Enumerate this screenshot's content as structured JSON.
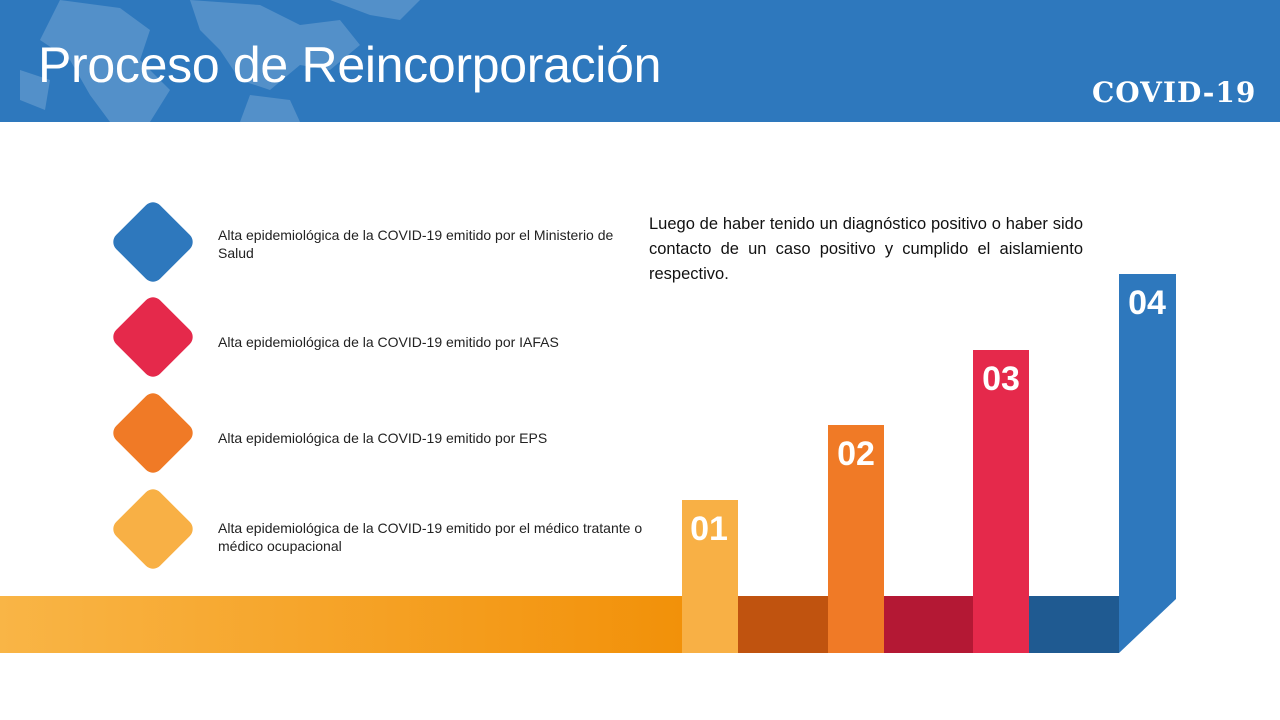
{
  "header": {
    "title": "Proceso de Reincorporación",
    "tag": "COVID-19",
    "background": "#2e78bd"
  },
  "steps": [
    {
      "text": "Alta epidemiológica de la COVID-19 emitido por el Ministerio de Salud",
      "color": "#2e78bd"
    },
    {
      "text": "Alta epidemiológica de la COVID-19 emitido por IAFAS",
      "color": "#e5294b"
    },
    {
      "text": "Alta epidemiológica de la COVID-19 emitido por EPS",
      "color": "#f07a26"
    },
    {
      "text": "Alta epidemiológica de la COVID-19 emitido por el médico tratante o médico ocupacional",
      "color": "#f8b045"
    }
  ],
  "description": "Luego de haber tenido un diagnóstico positivo o haber sido contacto de un caso positivo y cumplido el aislamiento respectivo.",
  "staircase": [
    {
      "label": "01",
      "color": "#f8b045"
    },
    {
      "label": "02",
      "color": "#f07a26"
    },
    {
      "label": "03",
      "color": "#e5294b"
    },
    {
      "label": "04",
      "color": "#2e78bd"
    }
  ]
}
